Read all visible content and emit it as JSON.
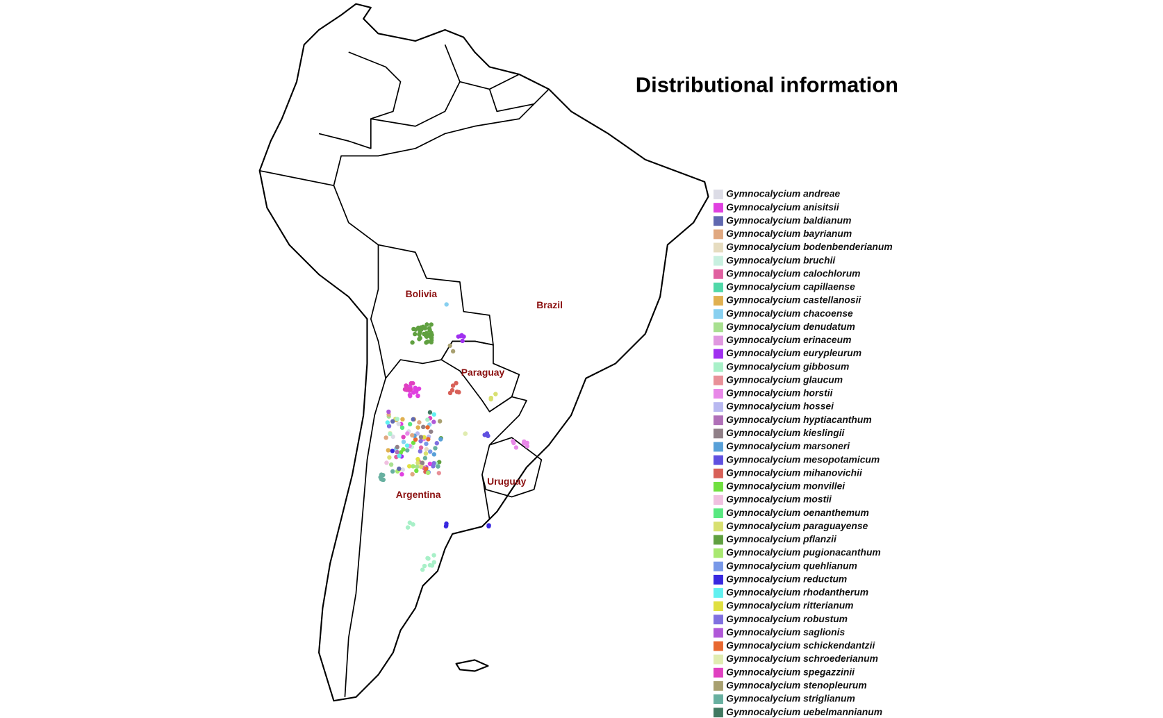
{
  "title": "Distributional information",
  "country_labels": [
    "Bolivia",
    "Brazil",
    "Paraguay",
    "Argentina",
    "Uruguay"
  ],
  "legend": {
    "items": [
      {
        "name": "Gymnocalycium andreae",
        "color": "#dcdce6"
      },
      {
        "name": "Gymnocalycium anisitsii",
        "color": "#e040e0"
      },
      {
        "name": "Gymnocalycium baldianum",
        "color": "#6068b0"
      },
      {
        "name": "Gymnocalycium bayrianum",
        "color": "#e0a880"
      },
      {
        "name": "Gymnocalycium bodenbenderianum",
        "color": "#e6dcc0"
      },
      {
        "name": "Gymnocalycium bruchii",
        "color": "#c8f0e0"
      },
      {
        "name": "Gymnocalycium calochlorum",
        "color": "#e060a0"
      },
      {
        "name": "Gymnocalycium capillaense",
        "color": "#50d8a8"
      },
      {
        "name": "Gymnocalycium castellanosii",
        "color": "#e0b050"
      },
      {
        "name": "Gymnocalycium chacoense",
        "color": "#88d0f0"
      },
      {
        "name": "Gymnocalycium denudatum",
        "color": "#a8e090"
      },
      {
        "name": "Gymnocalycium erinaceum",
        "color": "#e098e0"
      },
      {
        "name": "Gymnocalycium eurypleurum",
        "color": "#a030f0"
      },
      {
        "name": "Gymnocalycium gibbosum",
        "color": "#a8f0c8"
      },
      {
        "name": "Gymnocalycium glaucum",
        "color": "#e89098"
      },
      {
        "name": "Gymnocalycium horstii",
        "color": "#e888e8"
      },
      {
        "name": "Gymnocalycium hossei",
        "color": "#b8b8f0"
      },
      {
        "name": "Gymnocalycium hyptiacanthum",
        "color": "#b070b8"
      },
      {
        "name": "Gymnocalycium kieslingii",
        "color": "#908088"
      },
      {
        "name": "Gymnocalycium marsoneri",
        "color": "#58a0d8"
      },
      {
        "name": "Gymnocalycium mesopotamicum",
        "color": "#6050e0"
      },
      {
        "name": "Gymnocalycium mihanovichii",
        "color": "#d86058"
      },
      {
        "name": "Gymnocalycium monvillei",
        "color": "#70e040"
      },
      {
        "name": "Gymnocalycium mostii",
        "color": "#f0c0e0"
      },
      {
        "name": "Gymnocalycium oenanthemum",
        "color": "#58e880"
      },
      {
        "name": "Gymnocalycium paraguayense",
        "color": "#d8e070"
      },
      {
        "name": "Gymnocalycium pflanzii",
        "color": "#60a040"
      },
      {
        "name": "Gymnocalycium pugionacanthum",
        "color": "#a8e870"
      },
      {
        "name": "Gymnocalycium quehlianum",
        "color": "#7898e8"
      },
      {
        "name": "Gymnocalycium reductum",
        "color": "#3828e0"
      },
      {
        "name": "Gymnocalycium rhodantherum",
        "color": "#60f0f0"
      },
      {
        "name": "Gymnocalycium ritterianum",
        "color": "#e0e040"
      },
      {
        "name": "Gymnocalycium robustum",
        "color": "#8070e0"
      },
      {
        "name": "Gymnocalycium saglionis",
        "color": "#b058d8"
      },
      {
        "name": "Gymnocalycium schickendantzii",
        "color": "#e86830"
      },
      {
        "name": "Gymnocalycium schroederianum",
        "color": "#e0ecb0"
      },
      {
        "name": "Gymnocalycium spegazzinii",
        "color": "#e040c0"
      },
      {
        "name": "Gymnocalycium stenopleurum",
        "color": "#a8a070"
      },
      {
        "name": "Gymnocalycium striglianum",
        "color": "#68b0a0"
      },
      {
        "name": "Gymnocalycium uebelmannianum",
        "color": "#407860"
      }
    ]
  }
}
